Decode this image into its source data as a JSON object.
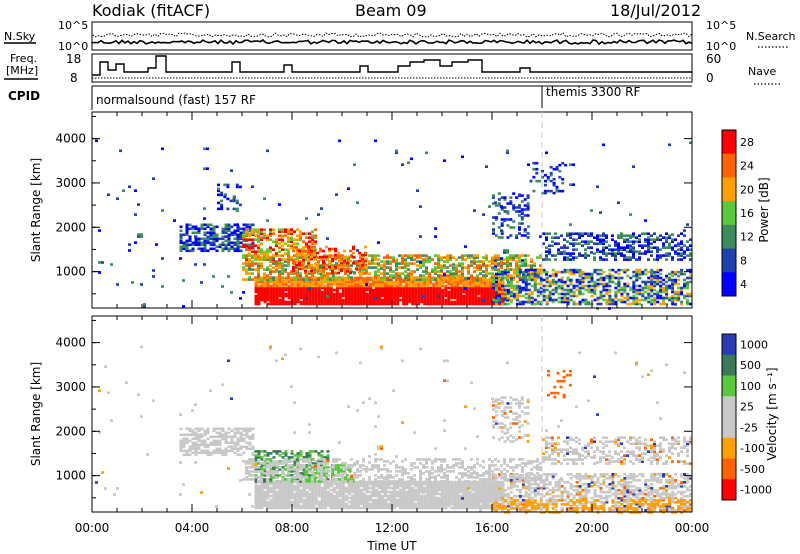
{
  "header": {
    "station": "Kodiak (fitACF)",
    "beam": "Beam 09",
    "date": "18/Jul/2012"
  },
  "panels": {
    "nsky_label": "N.Sky",
    "nsearch_label": "N.Search",
    "nsearch_ticks": [
      "10^5",
      "10^0"
    ],
    "nsky_ticks": [
      "10^5",
      "10^0"
    ],
    "freq_label_line1": "Freq.",
    "freq_label_line2": "[MHz]",
    "freq_ticks": [
      "18",
      "8"
    ],
    "nave_label": "Nave",
    "nave_ticks": [
      "60",
      "0"
    ],
    "cpid_label": "CPID",
    "cpid_segments": [
      {
        "label": "normalsound (fast) 157 RF",
        "start_hour": 0,
        "end_hour": 18
      },
      {
        "label": "themis 3300 RF",
        "start_hour": 18,
        "end_hour": 24
      }
    ]
  },
  "chart_data": [
    {
      "type": "heatmap",
      "name": "power",
      "ylabel": "Slant Range [km]",
      "xlabel": "",
      "x_range_hours": [
        0,
        24
      ],
      "ylim": [
        180,
        4600
      ],
      "ytick_labels": [
        "1000",
        "2000",
        "3000",
        "4000"
      ],
      "colorbar_label": "Power [dB]",
      "colorbar_ticks": [
        "4",
        "8",
        "12",
        "16",
        "20",
        "24",
        "28"
      ],
      "colorbar_colors": [
        "#0000ff",
        "#2040b0",
        "#3c8c5c",
        "#5ac83c",
        "#ffa000",
        "#ff6400",
        "#ff0000"
      ],
      "colorbar_range": [
        0,
        32
      ]
    },
    {
      "type": "heatmap",
      "name": "velocity",
      "ylabel": "Slant Range [km]",
      "xlabel": "Time UT",
      "x_range_hours": [
        0,
        24
      ],
      "xtick_labels": [
        "00:00",
        "04:00",
        "08:00",
        "12:00",
        "16:00",
        "20:00",
        "00:00"
      ],
      "ylim": [
        180,
        4600
      ],
      "ytick_labels": [
        "1000",
        "2000",
        "3000",
        "4000"
      ],
      "colorbar_label": "Velocity [m s⁻¹]",
      "colorbar_ticks": [
        "1000",
        "500",
        "100",
        "25",
        "-25",
        "-100",
        "-500",
        "-1000"
      ],
      "colorbar_colors": [
        "#2a3cb4",
        "#3a7a5a",
        "#5ac83c",
        "#c8c8c8",
        "#c8c8c8",
        "#ffa000",
        "#ff6400",
        "#ff0000"
      ],
      "colorbar_range": [
        -1000,
        1000
      ]
    }
  ]
}
